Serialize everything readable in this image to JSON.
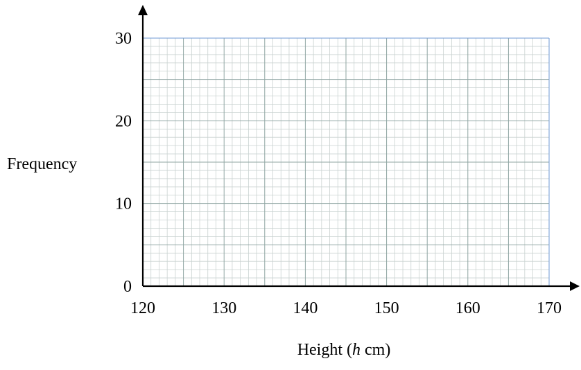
{
  "chart_data": {
    "type": "bar",
    "title": "",
    "xlabel": "Height (h cm)",
    "xlabel_parts": {
      "before": "Height (",
      "italic": "h",
      "after": " cm)"
    },
    "ylabel": "Frequency",
    "xlim": [
      120,
      170
    ],
    "ylim": [
      0,
      30
    ],
    "x_ticks": [
      120,
      130,
      140,
      150,
      160,
      170
    ],
    "y_ticks": [
      0,
      10,
      20,
      30
    ],
    "x_minor_step": 1,
    "y_minor_step": 1,
    "x_major_step": 5,
    "y_major_step": 5,
    "grid": true,
    "series": []
  },
  "colors": {
    "grid_minor": "#c9d2d0",
    "grid_major": "#8fa5a2",
    "axis": "#000000",
    "frame_accent": "#6e9ad6"
  }
}
